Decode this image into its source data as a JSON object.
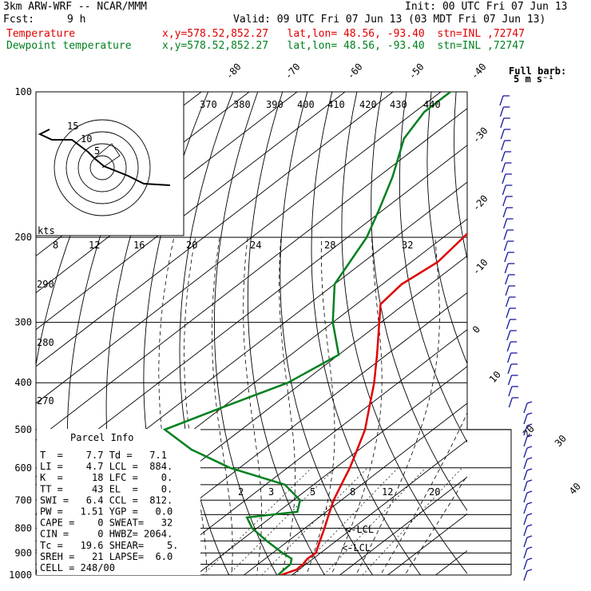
{
  "header": {
    "model": "3km ARW-WRF -- NCAR/MMM",
    "init": "Init: 00 UTC Fri 07 Jun 13",
    "fcst_label": "Fcst:",
    "fcst_value": "9 h",
    "valid": "Valid: 09 UTC Fri 07 Jun 13 (03 MDT Fri 07 Jun 13)",
    "temp_label": "Temperature",
    "temp_info": "x,y=578.52,852.27   lat,lon= 48.56, -93.40  stn=INL ,72747",
    "dew_label": "Dewpoint temperature",
    "dew_info": "x,y=578.52,852.27   lat,lon= 48.56, -93.40  stn=INL ,72747"
  },
  "colors": {
    "temperature": "#e00000",
    "dewpoint": "#00801f",
    "wind": "#1a1aa0",
    "hodograph": "#000000"
  },
  "pressure_labels": [
    "100",
    "200",
    "300",
    "400",
    "500",
    "600",
    "700",
    "800",
    "900",
    "1000"
  ],
  "isotherm_top_labels": [
    "-80",
    "-70",
    "-60",
    "-50",
    "-40"
  ],
  "isotherm_right_labels": [
    "-30",
    "-20",
    "-10",
    "0",
    "10",
    "20",
    "30",
    "40"
  ],
  "theta_labels": [
    "370",
    "380",
    "390",
    "400",
    "410",
    "420",
    "430",
    "440"
  ],
  "dry_adiabat_labels": [
    "290",
    "280",
    "270"
  ],
  "mixratio_top_labels": [
    "8",
    "12",
    "16",
    "20",
    "24",
    "28",
    "32"
  ],
  "mixratio_low_labels": [
    "2",
    "3",
    "5",
    "8",
    "12",
    "20"
  ],
  "kts_label": "kts",
  "full_barb": {
    "line1": "Full barb:",
    "line2": "5 m s⁻¹"
  },
  "hodo_rings": [
    "5",
    "10",
    "15"
  ],
  "lcl_label": "<-LCL",
  "lcl_label2": "<-LCL",
  "parcel_title": "Parcel Info",
  "parcel_rows": [
    "T  =    7.7 Td =   7.1",
    "LI =    4.7 LCL =  884.",
    "K  =     18 LFC =    0.",
    "TT =     43 EL  =    0.",
    "SWI =   6.4 CCL =  812.",
    "PW =   1.51 YGP =   0.0",
    "CAPE =    0 SWEAT=   32",
    "CIN =     0 HWBZ= 2064.",
    "Tc =   19.6 SHEAR=    5.",
    "SREH =   21 LAPSE=  6.0",
    "CELL = 248/00"
  ],
  "chart_data": {
    "type": "skew-t",
    "y_axis": "pressure (hPa), log scale",
    "ylim": [
      1000,
      100
    ],
    "series": [
      {
        "name": "Temperature",
        "color": "#e00000",
        "points": [
          [
            1000,
            7.7
          ],
          [
            975,
            9.5
          ],
          [
            950,
            9.4
          ],
          [
            925,
            8.8
          ],
          [
            900,
            9.0
          ],
          [
            850,
            6.6
          ],
          [
            800,
            4.1
          ],
          [
            750,
            1.3
          ],
          [
            700,
            -1.6
          ],
          [
            650,
            -4.2
          ],
          [
            600,
            -7.0
          ],
          [
            550,
            -10.4
          ],
          [
            500,
            -14.2
          ],
          [
            450,
            -19.3
          ],
          [
            400,
            -25.0
          ],
          [
            350,
            -32.0
          ],
          [
            300,
            -40.3
          ],
          [
            275,
            -45.0
          ],
          [
            250,
            -46.0
          ],
          [
            225,
            -44.5
          ],
          [
            200,
            -45.8
          ],
          [
            175,
            -47.5
          ],
          [
            150,
            -50.0
          ],
          [
            125,
            -52.0
          ],
          [
            110,
            -53.0
          ],
          [
            100,
            -54.0
          ]
        ]
      },
      {
        "name": "Dewpoint temperature",
        "color": "#00801f",
        "points": [
          [
            1000,
            7.1
          ],
          [
            975,
            6.9
          ],
          [
            950,
            6.8
          ],
          [
            925,
            5.5
          ],
          [
            900,
            2.0
          ],
          [
            850,
            -4.5
          ],
          [
            800,
            -11.0
          ],
          [
            760,
            -15.0
          ],
          [
            740,
            -6.0
          ],
          [
            700,
            -8.6
          ],
          [
            650,
            -16.0
          ],
          [
            600,
            -32.0
          ],
          [
            550,
            -45.0
          ],
          [
            500,
            -56.0
          ],
          [
            450,
            -50.0
          ],
          [
            400,
            -43.0
          ],
          [
            350,
            -40.0
          ],
          [
            300,
            -50.0
          ],
          [
            250,
            -60.0
          ],
          [
            200,
            -66.0
          ],
          [
            175,
            -71.0
          ],
          [
            150,
            -77.0
          ],
          [
            125,
            -85.0
          ],
          [
            110,
            -88.0
          ],
          [
            100,
            -88.0
          ]
        ]
      }
    ],
    "hodograph": {
      "rings_kts": [
        5,
        10,
        15
      ],
      "path": [
        [
          8.0,
          -1.5
        ],
        [
          5.5,
          -1.8
        ],
        [
          3.0,
          -1.0
        ],
        [
          1.5,
          0.0
        ],
        [
          -0.5,
          1.5
        ],
        [
          -1.5,
          2.8
        ],
        [
          -3.0,
          3.4
        ],
        [
          -6.5,
          5.0
        ],
        [
          -9.0,
          5.3
        ],
        [
          -7.0,
          6.3
        ],
        [
          -5.5,
          7.0
        ]
      ]
    }
  }
}
